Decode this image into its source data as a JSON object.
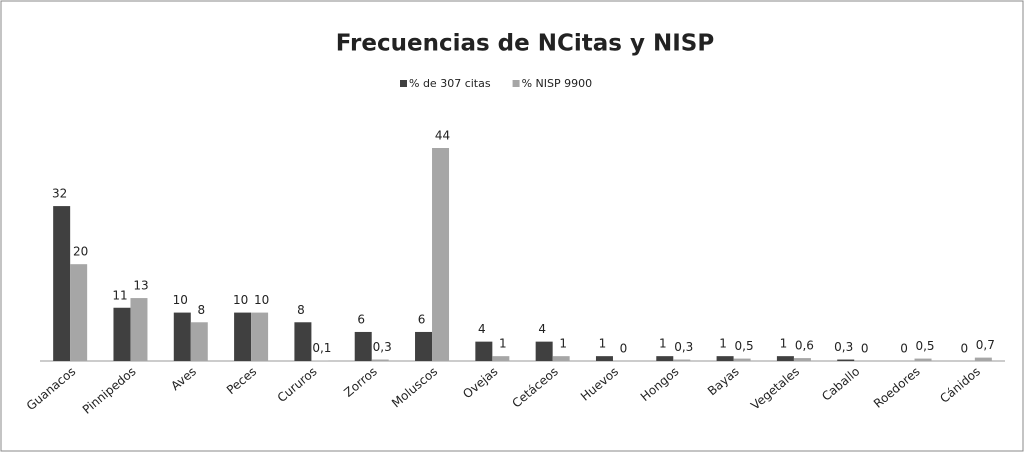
{
  "chart_data": {
    "type": "bar",
    "title": "Frecuencias de NCitas y NISP",
    "categories": [
      "Guanacos",
      "Pinnipedos",
      "Aves",
      "Peces",
      "Cururos",
      "Zorros",
      "Moluscos",
      "Ovejas",
      "Cetáceos",
      "Huevos",
      "Hongos",
      "Bayas",
      "Vegetales",
      "Caballo",
      "Roedores",
      "Cánidos"
    ],
    "series": [
      {
        "name": "% de 307 citas",
        "color": "#404040",
        "values": [
          32,
          11,
          10,
          10,
          8,
          6,
          6,
          4,
          4,
          1,
          1,
          1,
          1,
          0.3,
          0,
          0
        ],
        "value_labels": [
          "32",
          "11",
          "10",
          "10",
          "8",
          "6",
          "6",
          "4",
          "4",
          "1",
          "1",
          "1",
          "1",
          "0,3",
          "0",
          "0"
        ]
      },
      {
        "name": "% NISP 9900",
        "color": "#a6a6a6",
        "values": [
          20,
          13,
          8,
          10,
          0.1,
          0.3,
          44,
          1,
          1,
          0,
          0.3,
          0.5,
          0.6,
          0,
          0.5,
          0.7
        ],
        "value_labels": [
          "20",
          "13",
          "8",
          "10",
          "0,1",
          "0,3",
          "44",
          "1",
          "1",
          "0",
          "0,3",
          "0,5",
          "0,6",
          "0",
          "0,5",
          "0,7"
        ]
      }
    ],
    "legend": "top"
  }
}
